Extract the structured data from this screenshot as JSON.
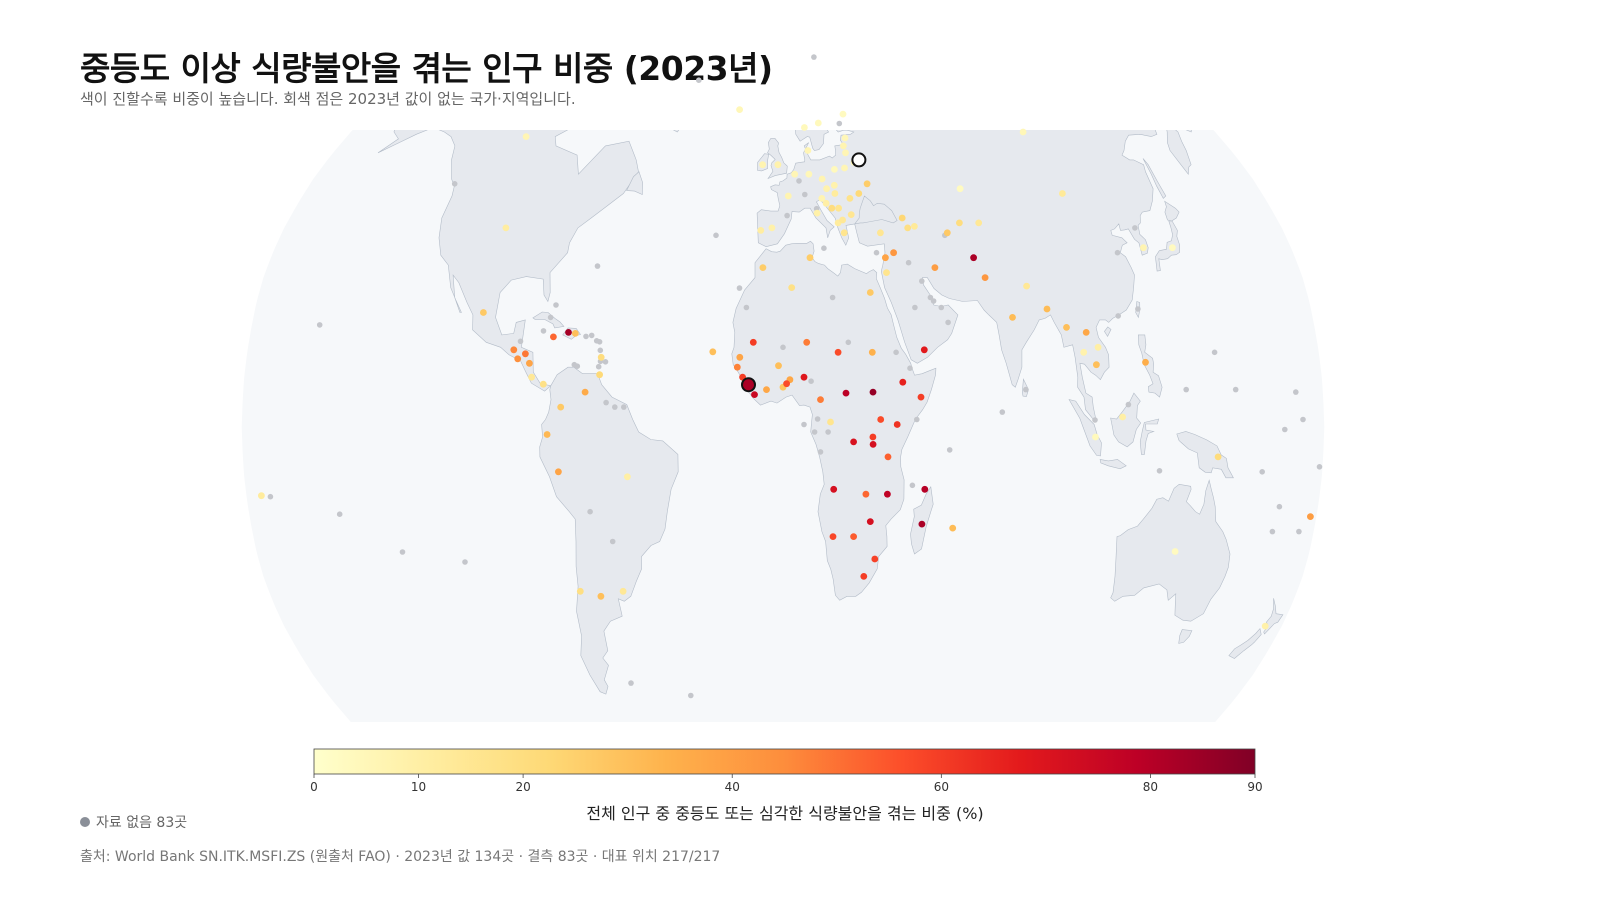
{
  "title": "중등도 이상 식량불안을 겪는 인구 비중 (2023년)",
  "subtitle": "색이 진할수록 비중이 높습니다. 회색 점은 2023년 값이 없는 국가·지역입니다.",
  "colorbar": {
    "title": "전체 인구 중 중등도 또는 심각한 식량불안을 겪는 비중 (%)",
    "ticks": [
      "0",
      "10",
      "20",
      "40",
      "60",
      "80",
      "90"
    ],
    "tick_values": [
      0,
      10,
      20,
      40,
      60,
      80,
      90
    ],
    "range": [
      0,
      90
    ],
    "colors": [
      "#ffffcc",
      "#ffeda0",
      "#fed976",
      "#feb24c",
      "#fd8d3c",
      "#fc4e2a",
      "#e31a1c",
      "#bd0026",
      "#800026"
    ]
  },
  "missing_note": "자료 없음 83곳",
  "source": "출처: World Bank SN.ITK.MSFI.ZS (원출처 FAO) · 2023년 값 134곳 · 결측 83곳 · 대표 위치 217/217",
  "colors": {
    "missing": "#c4c6cb",
    "land": "#e6e9ee",
    "ocean": "#f6f8fa",
    "coast": "#b3bcc8"
  },
  "chart_data": {
    "type": "map",
    "projection": "robinson",
    "points": [
      {
        "lon": -100,
        "lat": 40,
        "value": 11
      },
      {
        "lon": -106,
        "lat": 59,
        "value": 6
      },
      {
        "lon": -102,
        "lat": 23,
        "value": 27
      },
      {
        "lon": -90.5,
        "lat": 15.5,
        "value": 46
      },
      {
        "lon": -89,
        "lat": 13.7,
        "value": 44
      },
      {
        "lon": -86.5,
        "lat": 14.7,
        "value": 49
      },
      {
        "lon": -85,
        "lat": 12.8,
        "value": 38
      },
      {
        "lon": -84,
        "lat": 10,
        "value": 14
      },
      {
        "lon": -80,
        "lat": 8.6,
        "value": 18
      },
      {
        "lon": -77.5,
        "lat": 18.1,
        "value": 52
      },
      {
        "lon": -72.5,
        "lat": 19,
        "value": 83
      },
      {
        "lon": -70.2,
        "lat": 18.8,
        "value": 30
      },
      {
        "lon": -61,
        "lat": 14,
        "value": 20
      },
      {
        "lon": -61.3,
        "lat": 10.5,
        "value": 22
      },
      {
        "lon": -74,
        "lat": 4,
        "value": 27
      },
      {
        "lon": -66,
        "lat": 7,
        "value": 36
      },
      {
        "lon": -78.5,
        "lat": -1.5,
        "value": 32
      },
      {
        "lon": -75,
        "lat": -9,
        "value": 38
      },
      {
        "lon": -52,
        "lat": -10,
        "value": 10
      },
      {
        "lon": -71,
        "lat": -33,
        "value": 19
      },
      {
        "lon": -56,
        "lat": -33,
        "value": 14
      },
      {
        "lon": -64,
        "lat": -34,
        "value": 30
      },
      {
        "lon": -175,
        "lat": -13.8,
        "value": 12
      },
      {
        "lon": 7,
        "lat": 10,
        "value": 69
      },
      {
        "lon": 0,
        "lat": 8,
        "value": 28
      },
      {
        "lon": -1.5,
        "lat": 12.3,
        "value": 30
      },
      {
        "lon": -5.5,
        "lat": 7.5,
        "value": 37
      },
      {
        "lon": -11.5,
        "lat": 8.5,
        "value": 82
      },
      {
        "lon": -13.5,
        "lat": 10,
        "value": 60
      },
      {
        "lon": -14.5,
        "lat": 14,
        "value": 38
      },
      {
        "lon": -15.3,
        "lat": 12,
        "value": 47
      },
      {
        "lon": -9.5,
        "lat": 6.5,
        "value": 75
      },
      {
        "lon": -10,
        "lat": 17,
        "value": 60
      },
      {
        "lon": -23.6,
        "lat": 15.1,
        "value": 30
      },
      {
        "lon": 2.3,
        "lat": 9.5,
        "value": 37
      },
      {
        "lon": 1.2,
        "lat": 8.7,
        "value": 57
      },
      {
        "lon": 8,
        "lat": 17,
        "value": 48
      },
      {
        "lon": 18.5,
        "lat": 15,
        "value": 57
      },
      {
        "lon": 12.5,
        "lat": 5.5,
        "value": 48
      },
      {
        "lon": 21,
        "lat": 6.8,
        "value": 79
      },
      {
        "lon": 15.8,
        "lat": 1,
        "value": 16
      },
      {
        "lon": 23.5,
        "lat": -3,
        "value": 71
      },
      {
        "lon": 30,
        "lat": 7,
        "value": 86
      },
      {
        "lon": 30,
        "lat": 15,
        "value": 34
      },
      {
        "lon": 40,
        "lat": 9,
        "value": 66
      },
      {
        "lon": 38,
        "lat": 0.5,
        "value": 62
      },
      {
        "lon": 32.5,
        "lat": 1.5,
        "value": 57
      },
      {
        "lon": 29.9,
        "lat": -2,
        "value": 60
      },
      {
        "lon": 30,
        "lat": -3.5,
        "value": 72
      },
      {
        "lon": 35,
        "lat": -6,
        "value": 53
      },
      {
        "lon": 35,
        "lat": -13.5,
        "value": 78
      },
      {
        "lon": 47,
        "lat": -19.5,
        "value": 82
      },
      {
        "lon": 47.5,
        "lat": -12.5,
        "value": 80
      },
      {
        "lon": 57.5,
        "lat": -20.3,
        "value": 31
      },
      {
        "lon": 27.8,
        "lat": -13.5,
        "value": 52
      },
      {
        "lon": 29.5,
        "lat": -19,
        "value": 72
      },
      {
        "lon": 28,
        "lat": -30,
        "value": 60
      },
      {
        "lon": 31.5,
        "lat": -26.5,
        "value": 59
      },
      {
        "lon": 17,
        "lat": -12.5,
        "value": 72
      },
      {
        "lon": 17,
        "lat": -22,
        "value": 58
      },
      {
        "lon": 24,
        "lat": -22,
        "value": 54
      },
      {
        "lon": 46,
        "lat": 6,
        "value": 60
      },
      {
        "lon": 47.5,
        "lat": 15.5,
        "value": 68
      },
      {
        "lon": 36,
        "lat": 34,
        "value": 38
      },
      {
        "lon": 39,
        "lat": 35,
        "value": 42
      },
      {
        "lon": 36,
        "lat": 31,
        "value": 16
      },
      {
        "lon": 30,
        "lat": 27,
        "value": 27
      },
      {
        "lon": 3,
        "lat": 28,
        "value": 18
      },
      {
        "lon": -7,
        "lat": 32,
        "value": 26
      },
      {
        "lon": 9.5,
        "lat": 34,
        "value": 26
      },
      {
        "lon": 53,
        "lat": 32,
        "value": 40
      },
      {
        "lon": 67,
        "lat": 34,
        "value": 82
      },
      {
        "lon": 70,
        "lat": 30,
        "value": 42
      },
      {
        "lon": 78,
        "lat": 22,
        "value": 31
      },
      {
        "lon": 90,
        "lat": 23.7,
        "value": 31
      },
      {
        "lon": 84,
        "lat": 28.3,
        "value": 14
      },
      {
        "lon": 96,
        "lat": 20,
        "value": 30
      },
      {
        "lon": 102.5,
        "lat": 19,
        "value": 37
      },
      {
        "lon": 105,
        "lat": 12.5,
        "value": 30
      },
      {
        "lon": 101,
        "lat": 15,
        "value": 8
      },
      {
        "lon": 106,
        "lat": 16,
        "value": 10
      },
      {
        "lon": 121.5,
        "lat": 13,
        "value": 35
      },
      {
        "lon": 113,
        "lat": 2,
        "value": 10
      },
      {
        "lon": 104,
        "lat": -2,
        "value": 4
      },
      {
        "lon": 145,
        "lat": -6,
        "value": 21
      },
      {
        "lon": 134,
        "lat": -25,
        "value": 3
      },
      {
        "lon": 174,
        "lat": -40,
        "value": 9
      },
      {
        "lon": 178,
        "lat": -18,
        "value": 40
      },
      {
        "lon": 105,
        "lat": 47,
        "value": 13
      },
      {
        "lon": 67,
        "lat": 48,
        "value": 3
      },
      {
        "lon": 100,
        "lat": 60,
        "value": 5
      },
      {
        "lon": 127.7,
        "lat": 36,
        "value": 7
      },
      {
        "lon": 138,
        "lat": 36,
        "value": 3
      },
      {
        "lon": 71,
        "lat": 41,
        "value": 14
      },
      {
        "lon": 64,
        "lat": 41,
        "value": 20
      },
      {
        "lon": 59,
        "lat": 39,
        "value": 27
      },
      {
        "lon": 45,
        "lat": 40,
        "value": 19
      },
      {
        "lon": 43.5,
        "lat": 42,
        "value": 23
      },
      {
        "lon": 47.5,
        "lat": 40.3,
        "value": 13
      },
      {
        "lon": 35,
        "lat": 39,
        "value": 15
      },
      {
        "lon": 32,
        "lat": 49,
        "value": 26
      },
      {
        "lon": 28,
        "lat": 53.5,
        "value": 5
      },
      {
        "lon": 24,
        "lat": 52.3,
        "value": 6
      },
      {
        "lon": 20,
        "lat": 52,
        "value": 4
      },
      {
        "lon": 15,
        "lat": 50,
        "value": 7
      },
      {
        "lon": 10,
        "lat": 51,
        "value": 5
      },
      {
        "lon": 4.5,
        "lat": 51,
        "value": 6
      },
      {
        "lon": 2,
        "lat": 46.5,
        "value": 7
      },
      {
        "lon": -4,
        "lat": 40,
        "value": 9
      },
      {
        "lon": -8,
        "lat": 39.5,
        "value": 11
      },
      {
        "lon": -8,
        "lat": 53,
        "value": 7
      },
      {
        "lon": -2,
        "lat": 53,
        "value": 8
      },
      {
        "lon": 12.5,
        "lat": 43,
        "value": 9
      },
      {
        "lon": 14.5,
        "lat": 46,
        "value": 7
      },
      {
        "lon": 16.5,
        "lat": 48,
        "value": 8
      },
      {
        "lon": 19.5,
        "lat": 47,
        "value": 12
      },
      {
        "lon": 19.5,
        "lat": 48.7,
        "value": 8
      },
      {
        "lon": 16,
        "lat": 45,
        "value": 10
      },
      {
        "lon": 20.5,
        "lat": 44,
        "value": 16
      },
      {
        "lon": 18,
        "lat": 44,
        "value": 20
      },
      {
        "lon": 25,
        "lat": 46,
        "value": 17
      },
      {
        "lon": 25,
        "lat": 42.7,
        "value": 15
      },
      {
        "lon": 22,
        "lat": 39,
        "value": 16
      },
      {
        "lon": 20,
        "lat": 41,
        "value": 12
      },
      {
        "lon": 21.7,
        "lat": 41.6,
        "value": 14
      },
      {
        "lon": 28.5,
        "lat": 47,
        "value": 22
      },
      {
        "lon": 25,
        "lat": 55.5,
        "value": 6
      },
      {
        "lon": 24.5,
        "lat": 57,
        "value": 7
      },
      {
        "lon": 25.5,
        "lat": 58.7,
        "value": 5
      },
      {
        "lon": 26,
        "lat": 64,
        "value": 3
      },
      {
        "lon": 15,
        "lat": 62,
        "value": 4
      },
      {
        "lon": 9,
        "lat": 61,
        "value": 4
      },
      {
        "lon": 10,
        "lat": 56,
        "value": 6
      },
      {
        "lon": -19,
        "lat": 65,
        "value": 5
      }
    ],
    "missing_points": [
      {
        "lon": -40,
        "lat": 72
      },
      {
        "lon": -125,
        "lat": 49
      },
      {
        "lon": 118,
        "lat": 35
      },
      {
        "lon": 44,
        "lat": 33
      },
      {
        "lon": 54,
        "lat": 24
      },
      {
        "lon": 51.5,
        "lat": 25.3
      },
      {
        "lon": 45,
        "lat": 24
      },
      {
        "lon": 50.5,
        "lat": 26
      },
      {
        "lon": 48,
        "lat": 29.3
      },
      {
        "lon": 56,
        "lat": 21
      },
      {
        "lon": 58,
        "lat": 38.5
      },
      {
        "lon": 33,
        "lat": 35
      },
      {
        "lon": 14.5,
        "lat": 35.9
      },
      {
        "lon": 38,
        "lat": 15
      },
      {
        "lon": 42.5,
        "lat": 11.8
      },
      {
        "lon": 11.5,
        "lat": 1.6
      },
      {
        "lon": 10.5,
        "lat": -1
      },
      {
        "lon": 15,
        "lat": -1
      },
      {
        "lon": 12.5,
        "lat": -5
      },
      {
        "lon": 22,
        "lat": 17
      },
      {
        "lon": 17,
        "lat": 26
      },
      {
        "lon": 0,
        "lat": 16
      },
      {
        "lon": -12.5,
        "lat": 24
      },
      {
        "lon": 7,
        "lat": 0.5
      },
      {
        "lon": 55.5,
        "lat": -4.6
      },
      {
        "lon": 43.3,
        "lat": -11.7
      },
      {
        "lon": 73,
        "lat": 3
      },
      {
        "lon": 81,
        "lat": 7.5
      },
      {
        "lon": 125.7,
        "lat": -8.8
      },
      {
        "lon": 115,
        "lat": 4.5
      },
      {
        "lon": 103.8,
        "lat": 1.4
      },
      {
        "lon": 127,
        "lat": 40
      },
      {
        "lon": 121,
        "lat": 23.7
      },
      {
        "lon": 114,
        "lat": 22.3
      },
      {
        "lon": 151,
        "lat": 7.5
      },
      {
        "lon": 134.5,
        "lat": 7.5
      },
      {
        "lon": 145,
        "lat": 15
      },
      {
        "lon": 171,
        "lat": 7
      },
      {
        "lon": 173,
        "lat": 1.5
      },
      {
        "lon": 160,
        "lat": -9
      },
      {
        "lon": 167,
        "lat": -16
      },
      {
        "lon": 166,
        "lat": -21
      },
      {
        "lon": 179,
        "lat": -8
      },
      {
        "lon": 166.9,
        "lat": -0.5
      },
      {
        "lon": 175,
        "lat": -21
      },
      {
        "lon": -149.5,
        "lat": -17.5
      },
      {
        "lon": -172,
        "lat": -14
      },
      {
        "lon": -157,
        "lat": 20.5
      },
      {
        "lon": -64.8,
        "lat": 32.3
      },
      {
        "lon": -77.5,
        "lat": 24.5
      },
      {
        "lon": -79,
        "lat": 22
      },
      {
        "lon": -81,
        "lat": 19.3
      },
      {
        "lon": -66.5,
        "lat": 18.2
      },
      {
        "lon": -64.6,
        "lat": 18.4
      },
      {
        "lon": -62.8,
        "lat": 17.3
      },
      {
        "lon": -61.8,
        "lat": 17.1
      },
      {
        "lon": -61.4,
        "lat": 15.4
      },
      {
        "lon": -61.2,
        "lat": 13.2
      },
      {
        "lon": -59.5,
        "lat": 13.1
      },
      {
        "lon": -61.7,
        "lat": 12.1
      },
      {
        "lon": -69.9,
        "lat": 12.5
      },
      {
        "lon": -68.9,
        "lat": 12.2
      },
      {
        "lon": -88.5,
        "lat": 17.2
      },
      {
        "lon": -58.9,
        "lat": 4.9
      },
      {
        "lon": -56,
        "lat": 4
      },
      {
        "lon": -53,
        "lat": 4
      },
      {
        "lon": -65,
        "lat": -17
      },
      {
        "lon": -58,
        "lat": -23
      },
      {
        "lon": -59,
        "lat": -51.7
      },
      {
        "lon": -36.5,
        "lat": -54.3
      },
      {
        "lon": -109.3,
        "lat": -27.1
      },
      {
        "lon": -130.1,
        "lat": -25.1
      },
      {
        "lon": 1.5,
        "lat": 42.5
      },
      {
        "lon": 6.1,
        "lat": 49.6
      },
      {
        "lon": 8.2,
        "lat": 46.8
      },
      {
        "lon": 12.4,
        "lat": 43.9
      },
      {
        "lon": -15,
        "lat": 27.9
      },
      {
        "lon": -24,
        "lat": 38.5
      },
      {
        "lon": 23.9,
        "lat": 61.9
      },
      {
        "lon": 16,
        "lat": 78
      },
      {
        "lon": 44.5,
        "lat": 1.5
      },
      {
        "lon": 9.4,
        "lat": 9.2
      }
    ],
    "highlighted": [
      {
        "lon": 30,
        "lat": 54,
        "value": null
      },
      {
        "lon": -11.5,
        "lat": 8.5,
        "value": 82
      }
    ]
  }
}
